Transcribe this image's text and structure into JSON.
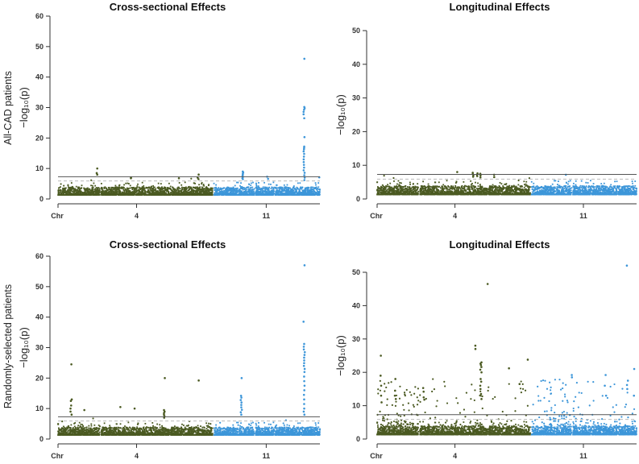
{
  "row_labels": [
    "All-CAD patients",
    "Randomly-selected patients"
  ],
  "colors": {
    "green": "#4b5a22",
    "blue": "#3d96d9",
    "sig_line": "#555555",
    "sug_line": "#bbbbbb"
  },
  "chart_data": [
    {
      "type": "scatter",
      "title": "Cross-sectional Effects",
      "ylabel": "−log₁₀(p)",
      "row_label": "All-CAD patients",
      "ylim": [
        0,
        60
      ],
      "yticks": [
        0,
        10,
        20,
        30,
        40,
        50,
        60
      ],
      "xticks": [
        {
          "label": "Chr",
          "pos": 0
        },
        {
          "label": "4",
          "pos": 30
        },
        {
          "label": "11",
          "pos": 79.5
        }
      ],
      "genome_wide_threshold": 7.3,
      "suggestive_threshold": 5.9,
      "segments": [
        {
          "from": 0,
          "to": 16,
          "color": "green"
        },
        {
          "from": 16.5,
          "to": 59,
          "color": "green"
        },
        {
          "from": 59.5,
          "to": 75,
          "color": "blue"
        },
        {
          "from": 75.5,
          "to": 100,
          "color": "blue"
        }
      ],
      "scatter_extra": 6,
      "peaks": [
        {
          "x": 15,
          "y": [
            10,
            8.5,
            8
          ]
        },
        {
          "x": 28,
          "y": [
            7,
            6.8
          ]
        },
        {
          "x": 46,
          "y": [
            6.8
          ]
        },
        {
          "x": 53.5,
          "y": [
            8,
            7,
            6.5
          ]
        },
        {
          "x": 70.5,
          "y": [
            9,
            8.7,
            8.3,
            8,
            7.6,
            7.2,
            6.8,
            6.5
          ]
        },
        {
          "x": 80,
          "y": [
            7.3,
            6.6
          ]
        },
        {
          "x": 94,
          "y": [
            46,
            30.2,
            29.8,
            29.3,
            28.6,
            27.8,
            26.5,
            20.3,
            17.2,
            16.8,
            16.3,
            15.6,
            14.8,
            13.9,
            13,
            12.1,
            11.2,
            10.3,
            9.4,
            8.6,
            7.8,
            7,
            6.2
          ]
        },
        {
          "x": 99.7,
          "y": [
            7.1
          ]
        }
      ]
    },
    {
      "type": "scatter",
      "title": "Longitudinal Effects",
      "ylabel": "−log₁₀(p)",
      "ylim": [
        0,
        50
      ],
      "yticks": [
        0,
        10,
        20,
        30,
        40,
        50
      ],
      "xticks": [
        {
          "label": "Chr",
          "pos": 0
        },
        {
          "label": "4",
          "pos": 30
        },
        {
          "label": "11",
          "pos": 79.5
        }
      ],
      "genome_wide_threshold": 7.3,
      "suggestive_threshold": 5.9,
      "segments": [
        {
          "from": 0,
          "to": 16,
          "color": "green"
        },
        {
          "from": 16.5,
          "to": 59,
          "color": "green"
        },
        {
          "from": 59.5,
          "to": 75,
          "color": "blue"
        },
        {
          "from": 75.5,
          "to": 100,
          "color": "blue"
        }
      ],
      "scatter_extra": 4,
      "peaks": [
        {
          "x": 31,
          "y": [
            8
          ]
        },
        {
          "x": 37,
          "y": [
            7.8,
            7.4,
            7,
            6.6
          ]
        },
        {
          "x": 38.5,
          "y": [
            7.6,
            7.2,
            6.8
          ]
        },
        {
          "x": 40,
          "y": [
            7.5,
            7,
            6.4
          ]
        },
        {
          "x": 45,
          "y": [
            7.2,
            6.5
          ]
        },
        {
          "x": 73,
          "y": [
            7.2
          ]
        }
      ]
    },
    {
      "type": "scatter",
      "title": "Cross-sectional Effects",
      "ylabel": "−log₁₀(p)",
      "row_label": "Randomly-selected patients",
      "ylim": [
        0,
        60
      ],
      "yticks": [
        0,
        10,
        20,
        30,
        40,
        50,
        60
      ],
      "xticks": [
        {
          "label": "Chr",
          "pos": 0
        },
        {
          "label": "4",
          "pos": 30
        },
        {
          "label": "11",
          "pos": 79.5
        }
      ],
      "genome_wide_threshold": 7.3,
      "suggestive_threshold": 5.9,
      "segments": [
        {
          "from": 0,
          "to": 16,
          "color": "green"
        },
        {
          "from": 16.5,
          "to": 59,
          "color": "green"
        },
        {
          "from": 59.5,
          "to": 75,
          "color": "blue"
        },
        {
          "from": 75.5,
          "to": 100,
          "color": "blue"
        }
      ],
      "scatter_extra": 12,
      "peaks": [
        {
          "x": 5,
          "y": [
            24.5,
            13,
            12.5,
            11,
            10,
            9,
            8
          ]
        },
        {
          "x": 10,
          "y": [
            9.5
          ]
        },
        {
          "x": 24,
          "y": [
            10.5
          ]
        },
        {
          "x": 29,
          "y": [
            10
          ]
        },
        {
          "x": 40.6,
          "y": [
            20,
            9.5,
            9,
            8.5,
            8,
            7.5,
            7
          ]
        },
        {
          "x": 53.5,
          "y": [
            19.2
          ]
        },
        {
          "x": 70,
          "y": [
            20,
            14.2,
            13.6,
            12.8,
            12,
            11.2,
            10.4,
            9.6,
            8.8,
            8
          ]
        },
        {
          "x": 94,
          "y": [
            57,
            38.5,
            31.2,
            30.3,
            29.4,
            28.5,
            27.6,
            26.7,
            25.8,
            24.9,
            24,
            23,
            22,
            20.5,
            19,
            17.5,
            16,
            14.5,
            13,
            11.5,
            10,
            9,
            8
          ]
        }
      ]
    },
    {
      "type": "scatter",
      "title": "Longitudinal Effects",
      "ylabel": "−log₁₀(p)",
      "ylim": [
        0,
        50
      ],
      "yticks": [
        0,
        10,
        20,
        30,
        40,
        50
      ],
      "xticks": [
        {
          "label": "Chr",
          "pos": 0
        },
        {
          "label": "4",
          "pos": 30
        },
        {
          "label": "11",
          "pos": 79.5
        }
      ],
      "genome_wide_threshold": 7.3,
      "suggestive_threshold": 5.9,
      "segments": [
        {
          "from": 0,
          "to": 16,
          "color": "green"
        },
        {
          "from": 16.5,
          "to": 59,
          "color": "green"
        },
        {
          "from": 59.5,
          "to": 75,
          "color": "blue"
        },
        {
          "from": 75.5,
          "to": 100,
          "color": "blue"
        }
      ],
      "scatter_extra": 260,
      "peaks": [
        {
          "x": 1.5,
          "y": [
            25,
            19,
            16,
            13,
            11
          ]
        },
        {
          "x": 7,
          "y": [
            18,
            14.5,
            13,
            12
          ]
        },
        {
          "x": 18,
          "y": [
            15.3,
            14.2,
            12.5,
            11.8
          ]
        },
        {
          "x": 38,
          "y": [
            28,
            27
          ]
        },
        {
          "x": 40,
          "y": [
            23,
            22.6,
            22.2,
            21.6,
            20.8,
            20,
            18,
            17.2,
            16,
            15,
            13.5,
            12
          ]
        },
        {
          "x": 42.5,
          "y": [
            46.5
          ]
        },
        {
          "x": 51,
          "y": [
            21.2
          ]
        },
        {
          "x": 55,
          "y": [
            16.5
          ]
        },
        {
          "x": 58,
          "y": [
            23.8
          ]
        },
        {
          "x": 75,
          "y": [
            19.2,
            18.5
          ]
        },
        {
          "x": 88,
          "y": [
            19.2,
            16,
            13
          ]
        },
        {
          "x": 96.5,
          "y": [
            52,
            17.5,
            16.2,
            15
          ]
        },
        {
          "x": 99,
          "y": [
            21,
            13
          ]
        }
      ]
    }
  ]
}
